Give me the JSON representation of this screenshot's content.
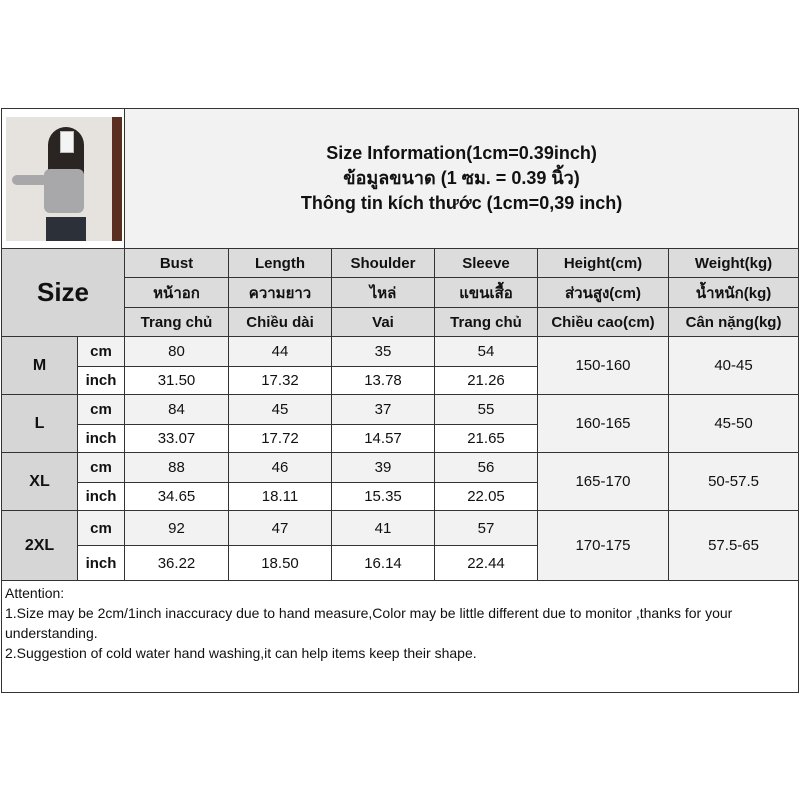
{
  "title_lines": [
    "Size Information(1cm=0.39inch)",
    "ข้อมูลขนาด (1 ซม. = 0.39 นิ้ว)",
    "Thông tin kích thước (1cm=0,39 inch)"
  ],
  "size_label": "Size",
  "columns": [
    {
      "en": "Bust",
      "th": "หน้าอก",
      "vi": "Trang chủ"
    },
    {
      "en": "Length",
      "th": "ความยาว",
      "vi": "Chiều dài"
    },
    {
      "en": "Shoulder",
      "th": "ไหล่",
      "vi": "Vai"
    },
    {
      "en": "Sleeve",
      "th": "แขนเสื้อ",
      "vi": "Trang chủ"
    },
    {
      "en": "Height(cm)",
      "th": "ส่วนสูง(cm)",
      "vi": "Chiều cao(cm)"
    },
    {
      "en": "Weight(kg)",
      "th": "น้ำหนัก(kg)",
      "vi": "Cân nặng(kg)"
    }
  ],
  "units": {
    "cm": "cm",
    "inch": "inch"
  },
  "rows": [
    {
      "size": "M",
      "cm": [
        "80",
        "44",
        "35",
        "54"
      ],
      "inch": [
        "31.50",
        "17.32",
        "13.78",
        "21.26"
      ],
      "height": "150-160",
      "weight": "40-45"
    },
    {
      "size": "L",
      "cm": [
        "84",
        "45",
        "37",
        "55"
      ],
      "inch": [
        "33.07",
        "17.72",
        "14.57",
        "21.65"
      ],
      "height": "160-165",
      "weight": "45-50"
    },
    {
      "size": "XL",
      "cm": [
        "88",
        "46",
        "39",
        "56"
      ],
      "inch": [
        "34.65",
        "18.11",
        "15.35",
        "22.05"
      ],
      "height": "165-170",
      "weight": "50-57.5"
    },
    {
      "size": "2XL",
      "cm": [
        "92",
        "47",
        "41",
        "57"
      ],
      "inch": [
        "36.22",
        "18.50",
        "16.14",
        "22.44"
      ],
      "height": "170-175",
      "weight": "57.5-65"
    }
  ],
  "notes": [
    "Attention:",
    "1.Size may be 2cm/1inch inaccuracy due to hand measure,Color may be little different due to monitor ,thanks for your understanding.",
    "2.Suggestion of cold water hand washing,it can help items keep their shape."
  ]
}
